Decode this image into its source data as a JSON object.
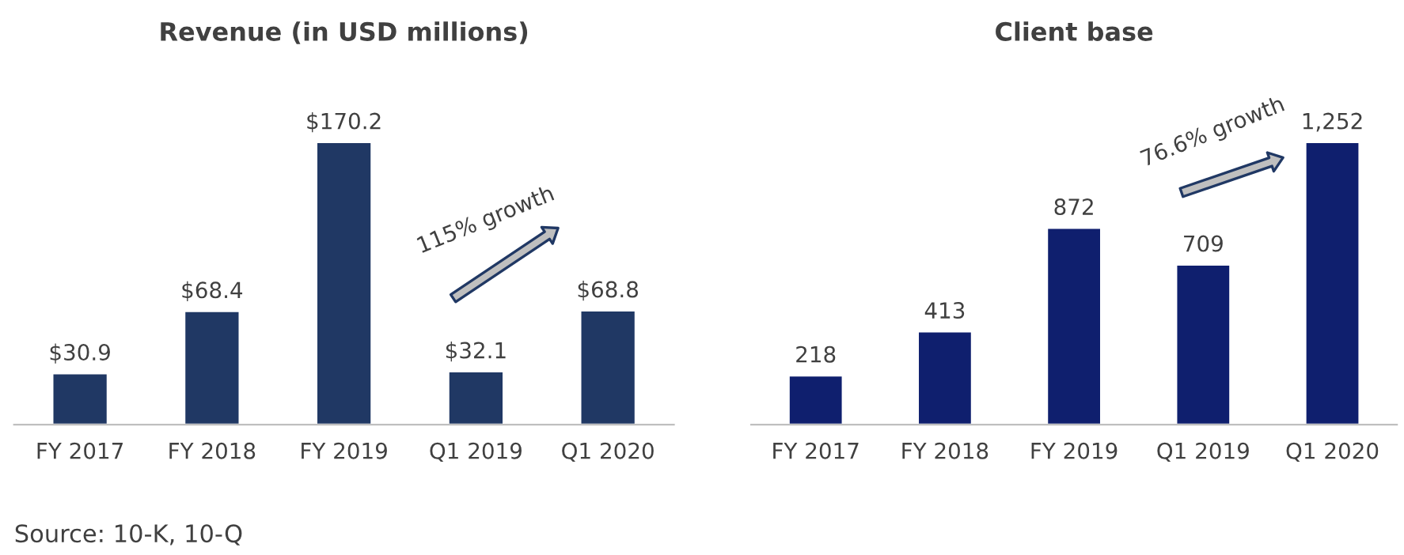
{
  "chart_data": [
    {
      "type": "bar",
      "title": "Revenue (in USD millions)",
      "categories": [
        "FY 2017",
        "FY 2018",
        "FY 2019",
        "Q1 2019",
        "Q1 2020"
      ],
      "values": [
        30.9,
        68.4,
        170.2,
        32.1,
        68.8
      ],
      "colors": [
        "#203864",
        "#203864",
        "#203864",
        "#203864",
        "#203864"
      ],
      "value_labels": [
        "$30.9",
        "$68.4",
        "$170.2",
        "$32.1",
        "$68.8"
      ],
      "annotations": [
        "115% growth",
        "Source: 10-K, 10-Q"
      ],
      "grid": false,
      "tick_labels": "x"
    },
    {
      "type": "bar",
      "title": "Client base",
      "categories": [
        "FY 2017",
        "FY 2018",
        "FY 2019",
        "Q1 2019",
        "Q1 2020"
      ],
      "values": [
        218,
        413,
        872,
        709,
        1252
      ],
      "colors": [
        "#0f1f6e",
        "#0f1f6e",
        "#0f1f6e",
        "#0f1f6e",
        "#0f1f6e"
      ],
      "value_labels": [
        "218",
        "413",
        "872",
        "709",
        "1,252"
      ],
      "annotations": [
        "76.6% growth"
      ],
      "grid": false,
      "tick_labels": "x"
    }
  ]
}
